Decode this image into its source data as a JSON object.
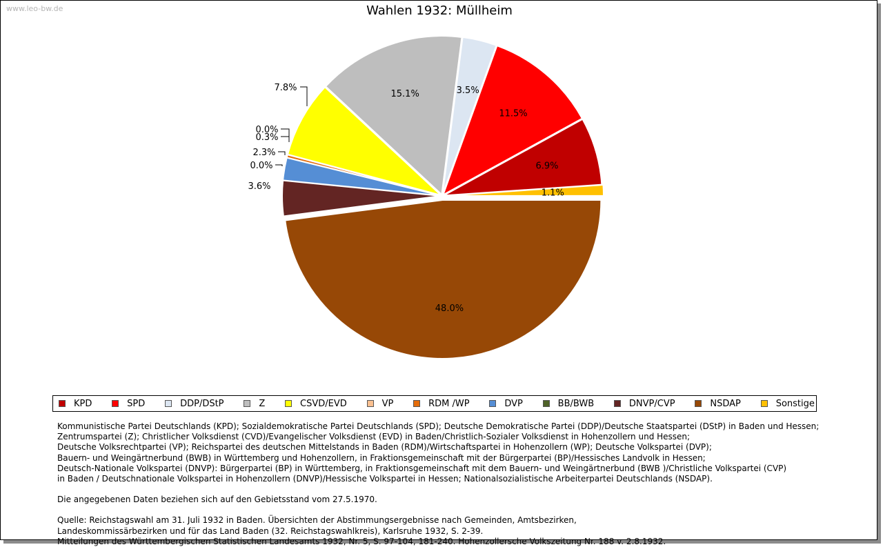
{
  "watermark": "www.leo-bw.de",
  "chart_data": {
    "type": "pie",
    "title": "Wahlen 1932: Müllheim",
    "slices": [
      {
        "label": "KPD",
        "value": 6.9,
        "display": "6.9%",
        "color": "#c00000"
      },
      {
        "label": "SPD",
        "value": 11.5,
        "display": "11.5%",
        "color": "#ff0000"
      },
      {
        "label": "DDP/DStP",
        "value": 3.5,
        "display": "3.5%",
        "color": "#dce6f2"
      },
      {
        "label": "Z",
        "value": 15.1,
        "display": "15.1%",
        "color": "#bebebe"
      },
      {
        "label": "CSVD/EVD",
        "value": 7.8,
        "display": "7.8%",
        "color": "#ffff00"
      },
      {
        "label": "VP",
        "value": 0.0,
        "display": "0.0%",
        "color": "#fac090"
      },
      {
        "label": "RDM /WP",
        "value": 0.3,
        "display": "0.3%",
        "color": "#e46c0a"
      },
      {
        "label": "DVP",
        "value": 2.3,
        "display": "2.3%",
        "color": "#558ed5"
      },
      {
        "label": "BB/BWB",
        "value": 0.0,
        "display": "0.0%",
        "color": "#4f6228"
      },
      {
        "label": "DNVP/CVP",
        "value": 3.6,
        "display": "3.6%",
        "color": "#632523"
      },
      {
        "label": "NSDAP",
        "value": 48.0,
        "display": "48.0%",
        "color": "#974806"
      },
      {
        "label": "Sonstige",
        "value": 1.1,
        "display": "1.1%",
        "color": "#ffc000"
      }
    ]
  },
  "notes": {
    "parties": [
      "Kommunistische Partei Deutschlands (KPD); Sozialdemokratische Partei Deutschlands (SPD); Deutsche Demokratische Partei (DDP)/Deutsche Staatspartei (DStP) in Baden und Hessen;",
      "Zentrumspartei (Z); Christlicher Volksdienst (CVD)/Evangelischer Volksdienst (EVD) in Baden/Christlich-Sozialer Volksdienst in Hohenzollern und Hessen;",
      "Deutsche Volksrechtpartei (VP); Reichspartei des deutschen Mittelstands in Baden (RDM)/Wirtschaftspartei in Hohenzollern (WP); Deutsche Volkspartei (DVP);",
      "Bauern- und Weingärtnerbund (BWB) in Württemberg und Hohenzollern, in Fraktionsgemeinschaft mit der Bürgerpartei (BP)/Hessisches Landvolk in Hessen;",
      "Deutsch-Nationale Volkspartei (DNVP): Bürgerpartei (BP) in Württemberg, in Fraktionsgemeinschaft mit dem Bauern- und Weingärtnerbund (BWB )/Christliche Volkspartei (CVP)",
      "in Baden / Deutschnationale Volkspartei in Hohenzollern (DNVP)/Hessische Volkspartei in Hessen; Nationalsozialistische Arbeiterpartei Deutschlands (NSDAP)."
    ],
    "territory": "Die angegebenen Daten beziehen sich auf den Gebietsstand vom 27.5.1970.",
    "source": [
      "Quelle: Reichstagswahl am 31. Juli 1932 in Baden. Übersichten der Abstimmungsergebnisse nach Gemeinden, Amtsbezirken,",
      "Landeskommissärbezirken und für das Land Baden (32. Reichstagswahlkreis), Karlsruhe 1932, S. 2-39.",
      "Mitteilungen des Württembergischen Statistischen Landesamts 1932, Nr. 5, S. 97-104, 181-240. Hohenzollersche Volkszeitung Nr. 188 v. 2.8.1932."
    ]
  }
}
